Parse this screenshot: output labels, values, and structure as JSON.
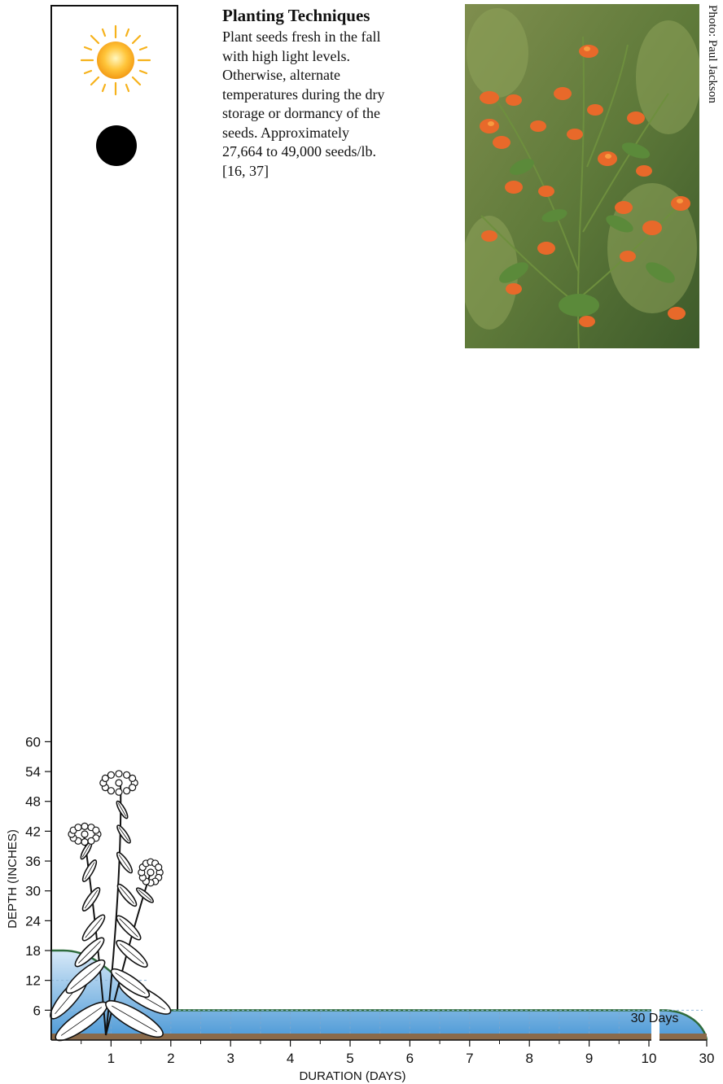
{
  "info": {
    "title": "Planting Techniques",
    "body": "Plant seeds fresh in the fall\nwith high light levels.\nOtherwise, alternate\ntemperatures during the dry\nstorage or dormancy of the\nseeds.   Approximately\n27,664 to 49,000 seeds/lb.\n[16, 37]"
  },
  "photo_credit": "Photo: Paul Jackson",
  "light_icons": [
    "sun-icon",
    "full-shade-icon"
  ],
  "colors": {
    "water_top": "#d7e9f8",
    "water_bottom": "#4a98d6",
    "water_line": "#2e6b3c",
    "soil": "#8a6a4a"
  },
  "chart_data": {
    "type": "area",
    "ylabel": "DEPTH (INCHES)",
    "xlabel": "DURATION (DAYS)",
    "y_ticks": [
      6,
      12,
      18,
      24,
      30,
      36,
      42,
      48,
      54,
      60
    ],
    "x_ticks": [
      "1",
      "2",
      "3",
      "4",
      "5",
      "6",
      "7",
      "8",
      "9",
      "10",
      "30"
    ],
    "annotation": "30 Days",
    "ylim": [
      0,
      60
    ],
    "series": [
      {
        "x": [
          0,
          0.2,
          1,
          1.5,
          2,
          10,
          30
        ],
        "depth": [
          18,
          18,
          12,
          7,
          6,
          6,
          0
        ]
      }
    ]
  }
}
